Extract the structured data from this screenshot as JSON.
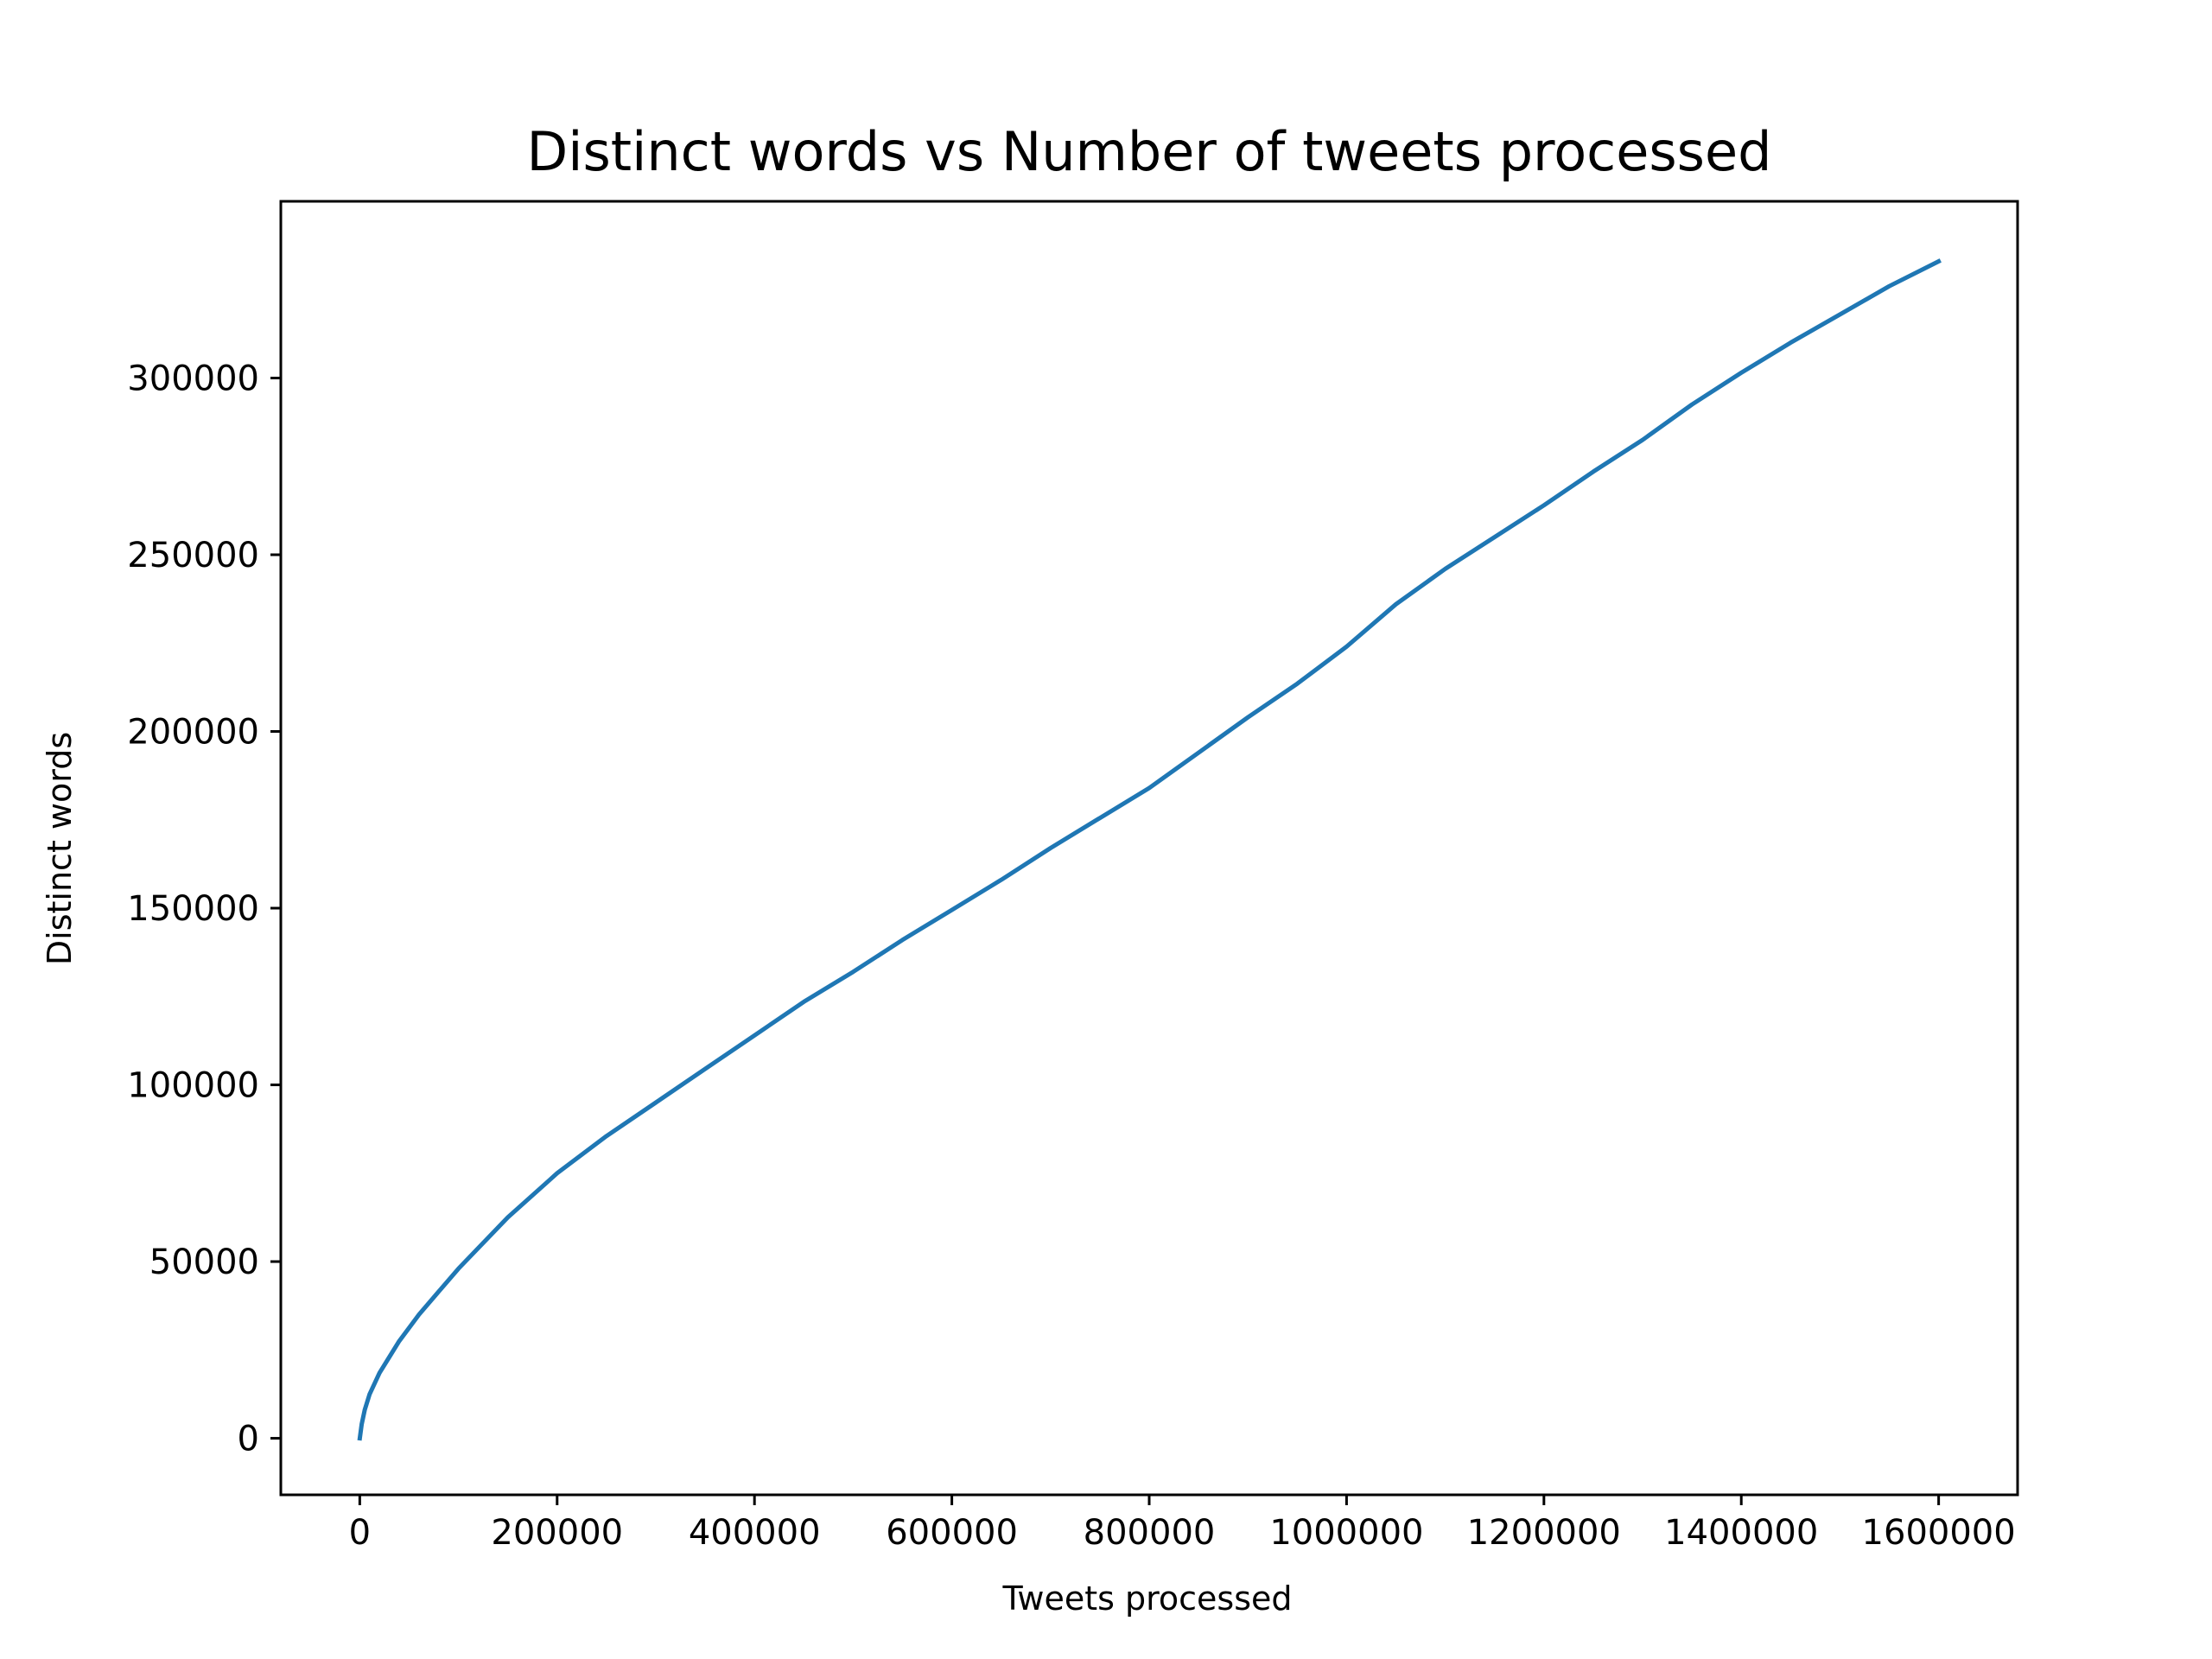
{
  "chart_data": {
    "type": "line",
    "title": "Distinct words vs Number of tweets processed",
    "xlabel": "Tweets processed",
    "ylabel": "Distinct words",
    "xlim": [
      -80000,
      1680000
    ],
    "ylim": [
      -16000,
      350000
    ],
    "xticks": [
      0,
      200000,
      400000,
      600000,
      800000,
      1000000,
      1200000,
      1400000,
      1600000
    ],
    "xtick_labels": [
      "0",
      "200000",
      "400000",
      "600000",
      "800000",
      "1000000",
      "1200000",
      "1400000",
      "1600000"
    ],
    "yticks": [
      0,
      50000,
      100000,
      150000,
      200000,
      250000,
      300000
    ],
    "ytick_labels": [
      "0",
      "50000",
      "100000",
      "150000",
      "200000",
      "250000",
      "300000"
    ],
    "grid": false,
    "legend": "none",
    "series": [
      {
        "color": "#1f77b4",
        "x": [
          0,
          2000,
          5000,
          10000,
          20000,
          30000,
          40000,
          60000,
          80000,
          100000,
          150000,
          200000,
          250000,
          300000,
          350000,
          400000,
          450000,
          500000,
          550000,
          600000,
          650000,
          700000,
          750000,
          800000,
          850000,
          900000,
          950000,
          1000000,
          1050000,
          1100000,
          1150000,
          1200000,
          1250000,
          1300000,
          1350000,
          1400000,
          1450000,
          1500000,
          1550000,
          1600000
        ],
        "y": [
          0,
          4000,
          8000,
          12500,
          18500,
          23000,
          27500,
          35000,
          41500,
          48000,
          62500,
          75000,
          85500,
          95000,
          104500,
          114000,
          123500,
          132000,
          141000,
          149500,
          158000,
          167000,
          175500,
          184000,
          194000,
          204000,
          213500,
          224000,
          236000,
          246000,
          255000,
          264000,
          273500,
          282500,
          292500,
          301500,
          310000,
          318000,
          326000,
          333000
        ]
      }
    ]
  }
}
